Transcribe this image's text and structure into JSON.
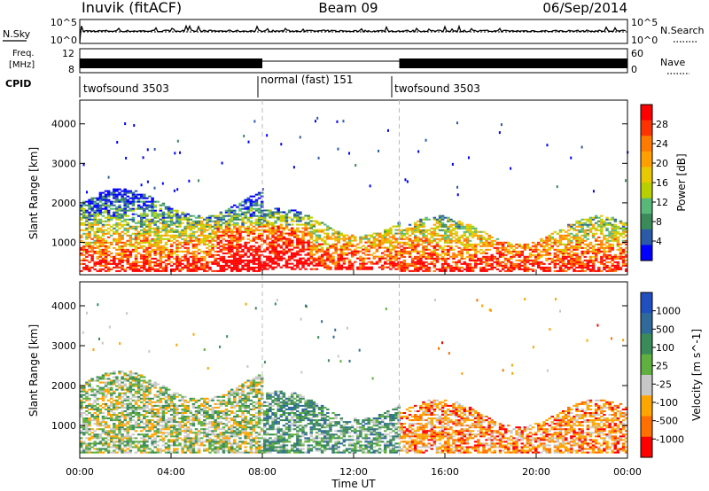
{
  "header": {
    "station": "Inuvik (fitACF)",
    "beam": "Beam 09",
    "date": "06/Sep/2014"
  },
  "noise_panel": {
    "left_label": "N.Sky",
    "right_label": "N.Search",
    "left_ticks": [
      "10^5",
      "10^0"
    ],
    "right_ticks": [
      "10^5",
      "10^0"
    ]
  },
  "freq_panel": {
    "left_label_1": "Freq.",
    "left_label_2": "[MHz]",
    "right_label": "Nave",
    "left_ticks": [
      "12",
      "8"
    ],
    "right_ticks": [
      "60",
      "0"
    ]
  },
  "cpid": {
    "label": "CPID",
    "segments": [
      {
        "name": "twofsound 3503",
        "start_hour": 0,
        "end_hour": 8
      },
      {
        "name": "normal (fast) 151",
        "start_hour": 8,
        "end_hour": 14
      },
      {
        "name": "twofsound 3503",
        "start_hour": 14,
        "end_hour": 24
      }
    ]
  },
  "power_colorbar": {
    "label": "Power [dB]",
    "ticks": [
      "28",
      "24",
      "20",
      "16",
      "12",
      "8",
      "4"
    ],
    "colors": [
      "#ff0000",
      "#ff3300",
      "#ff7a00",
      "#ffa000",
      "#e8c800",
      "#b8d000",
      "#58b878",
      "#3a8a5a",
      "#2a5aa8",
      "#0000ff"
    ]
  },
  "velocity_colorbar": {
    "label": "Velocity [m s^-1]",
    "ticks": [
      "1000",
      "500",
      "100",
      "25",
      "-25",
      "-100",
      "-500",
      "-1000"
    ],
    "colors": [
      "#2050c0",
      "#2f6a9a",
      "#3a8a5a",
      "#60b040",
      "#c8c8c8",
      "#ffa500",
      "#ff7000",
      "#ff0000"
    ]
  },
  "chart_data": {
    "type": "heatmap",
    "title": "Inuvik (fitACF)",
    "xlabel": "Time UT",
    "ylabel": "Slant Range [km]",
    "x_ticks": [
      "00:00",
      "04:00",
      "08:00",
      "12:00",
      "16:00",
      "20:00",
      "00:00"
    ],
    "x_range_hours": [
      0,
      24
    ],
    "y_ticks": [
      1000,
      2000,
      3000,
      4000
    ],
    "ylim": [
      180,
      4600
    ],
    "panels": [
      {
        "name": "Power",
        "units": "dB",
        "range": [
          0,
          30
        ],
        "features": [
          {
            "t_start": 0.0,
            "t_end": 8.0,
            "r_low": 250,
            "r_high": 2500,
            "peak_value": 30
          },
          {
            "t_start": 8.0,
            "t_end": 14.0,
            "r_low": 300,
            "r_high": 2000,
            "peak_value": 30
          },
          {
            "t_start": 14.0,
            "t_end": 24.0,
            "r_low": 250,
            "r_high": 1800,
            "peak_value": 28
          }
        ]
      },
      {
        "name": "Velocity",
        "units": "m s^-1",
        "range": [
          -1000,
          1000
        ],
        "features": [
          {
            "t_start": 0.0,
            "t_end": 8.0,
            "r_low": 300,
            "r_high": 2500,
            "value": 100
          },
          {
            "t_start": 8.0,
            "t_end": 14.0,
            "r_low": 300,
            "r_high": 2000,
            "value": 200
          },
          {
            "t_start": 14.0,
            "t_end": 24.0,
            "r_low": 300,
            "r_high": 1800,
            "value": -300
          }
        ]
      }
    ]
  }
}
